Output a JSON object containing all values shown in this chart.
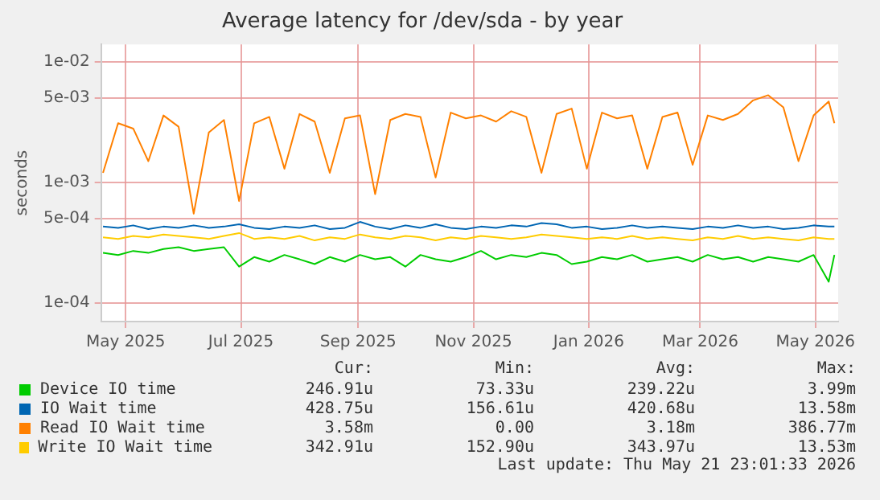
{
  "chart_data": {
    "type": "line",
    "title": "Average latency for /dev/sda - by year",
    "ylabel": "seconds",
    "log": "y",
    "grid": true,
    "legend": "bottom",
    "marker": "none",
    "line_style": "solid",
    "x": [
      "2025-04-19",
      "2025-04-27",
      "2025-05-05",
      "2025-05-13",
      "2025-05-21",
      "2025-05-29",
      "2025-06-06",
      "2025-06-14",
      "2025-06-22",
      "2025-06-30",
      "2025-07-08",
      "2025-07-16",
      "2025-07-24",
      "2025-08-01",
      "2025-08-09",
      "2025-08-17",
      "2025-08-25",
      "2025-09-02",
      "2025-09-10",
      "2025-09-18",
      "2025-09-26",
      "2025-10-04",
      "2025-10-12",
      "2025-10-20",
      "2025-10-28",
      "2025-11-05",
      "2025-11-13",
      "2025-11-21",
      "2025-11-29",
      "2025-12-07",
      "2025-12-15",
      "2025-12-23",
      "2025-12-31",
      "2026-01-08",
      "2026-01-16",
      "2026-01-24",
      "2026-02-01",
      "2026-02-09",
      "2026-02-17",
      "2026-02-25",
      "2026-03-05",
      "2026-03-13",
      "2026-03-21",
      "2026-03-29",
      "2026-04-06",
      "2026-04-14",
      "2026-04-22",
      "2026-04-30",
      "2026-05-08",
      "2026-05-11"
    ],
    "xlim": [
      "2025-04-18",
      "2026-05-13"
    ],
    "xticks": [
      {
        "value": "2025-05-01",
        "label": "May 2025"
      },
      {
        "value": "2025-07-01",
        "label": "Jul 2025"
      },
      {
        "value": "2025-09-01",
        "label": "Sep 2025"
      },
      {
        "value": "2025-11-01",
        "label": "Nov 2025"
      },
      {
        "value": "2026-01-01",
        "label": "Jan 2026"
      },
      {
        "value": "2026-03-01",
        "label": "Mar 2026"
      },
      {
        "value": "2026-05-01",
        "label": "May 2026"
      }
    ],
    "ylim": [
      7e-05,
      0.014
    ],
    "yticks": [
      {
        "value": 0.0001,
        "label": "1e-04"
      },
      {
        "value": 0.0005,
        "label": "5e-04"
      },
      {
        "value": 0.001,
        "label": "1e-03"
      },
      {
        "value": 0.005,
        "label": "5e-03"
      },
      {
        "value": 0.01,
        "label": "1e-02"
      }
    ],
    "series": [
      {
        "name": "Device IO time",
        "color": "#00cc00",
        "values": [
          0.00026,
          0.00025,
          0.00027,
          0.00026,
          0.00028,
          0.00029,
          0.00027,
          0.00028,
          0.00029,
          0.0002,
          0.00024,
          0.00022,
          0.00025,
          0.00023,
          0.00021,
          0.00024,
          0.00022,
          0.00025,
          0.00023,
          0.00024,
          0.0002,
          0.00025,
          0.00023,
          0.00022,
          0.00024,
          0.00027,
          0.00023,
          0.00025,
          0.00024,
          0.00026,
          0.00025,
          0.00021,
          0.00022,
          0.00024,
          0.00023,
          0.00025,
          0.00022,
          0.00023,
          0.00024,
          0.00022,
          0.00025,
          0.00023,
          0.00024,
          0.00022,
          0.00024,
          0.00023,
          0.00022,
          0.00025,
          0.00015,
          0.00025
        ]
      },
      {
        "name": "IO Wait time",
        "color": "#0066b3",
        "values": [
          0.00043,
          0.00042,
          0.00044,
          0.00041,
          0.00043,
          0.00042,
          0.00044,
          0.00042,
          0.00043,
          0.00045,
          0.00042,
          0.00041,
          0.00043,
          0.00042,
          0.00044,
          0.00041,
          0.00042,
          0.00047,
          0.00043,
          0.00041,
          0.00044,
          0.00042,
          0.00045,
          0.00042,
          0.00041,
          0.00043,
          0.00042,
          0.00044,
          0.00043,
          0.00046,
          0.00045,
          0.00042,
          0.00043,
          0.00041,
          0.00042,
          0.00044,
          0.00042,
          0.00043,
          0.00042,
          0.00041,
          0.00043,
          0.00042,
          0.00044,
          0.00042,
          0.00043,
          0.00041,
          0.00042,
          0.00044,
          0.00043,
          0.00043
        ]
      },
      {
        "name": "Read IO Wait time",
        "color": "#ff8000",
        "values": [
          0.0012,
          0.0031,
          0.0028,
          0.0015,
          0.0036,
          0.0029,
          0.00055,
          0.0026,
          0.0033,
          0.0007,
          0.0031,
          0.0035,
          0.0013,
          0.0037,
          0.0032,
          0.0012,
          0.0034,
          0.0036,
          0.0008,
          0.0033,
          0.0037,
          0.0035,
          0.0011,
          0.0038,
          0.0034,
          0.0036,
          0.0032,
          0.0039,
          0.0035,
          0.0012,
          0.0037,
          0.0041,
          0.0013,
          0.0038,
          0.0034,
          0.0036,
          0.0013,
          0.0035,
          0.0038,
          0.0014,
          0.0036,
          0.0033,
          0.0037,
          0.0048,
          0.0053,
          0.0042,
          0.0015,
          0.0036,
          0.0047,
          0.0031
        ]
      },
      {
        "name": "Write IO Wait time",
        "color": "#ffcc00",
        "values": [
          0.00035,
          0.00034,
          0.00036,
          0.00035,
          0.00037,
          0.00036,
          0.00035,
          0.00034,
          0.00036,
          0.00038,
          0.00034,
          0.00035,
          0.00034,
          0.00036,
          0.00033,
          0.00035,
          0.00034,
          0.00037,
          0.00035,
          0.00034,
          0.00036,
          0.00035,
          0.00033,
          0.00035,
          0.00034,
          0.00036,
          0.00035,
          0.00034,
          0.00035,
          0.00037,
          0.00036,
          0.00035,
          0.00034,
          0.00035,
          0.00034,
          0.00036,
          0.00034,
          0.00035,
          0.00034,
          0.00033,
          0.00035,
          0.00034,
          0.00036,
          0.00034,
          0.00035,
          0.00034,
          0.00033,
          0.00035,
          0.00034,
          0.00034
        ]
      }
    ],
    "annotations": [
      "Cur:",
      "Min:",
      "Avg:",
      "Max:",
      "246.91u",
      "73.33u",
      "239.22u",
      "3.99m",
      "428.75u",
      "156.61u",
      "420.68u",
      "13.58m",
      "3.58m",
      "0.00",
      "3.18m",
      "386.77m",
      "342.91u",
      "152.90u",
      "343.97u",
      "13.53m",
      "Last update: Thu May 21 23:01:33 2026"
    ]
  }
}
